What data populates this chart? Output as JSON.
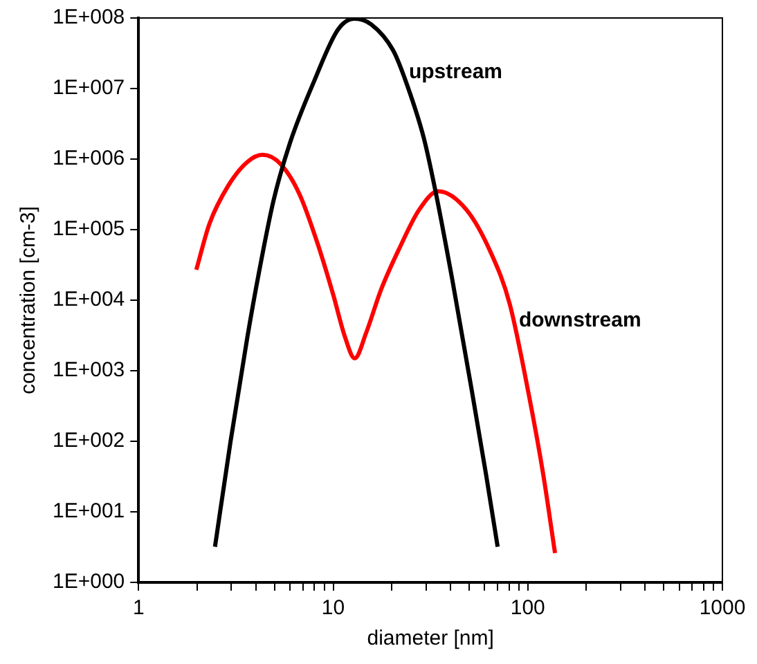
{
  "chart_data": {
    "type": "line",
    "xlabel": "diameter [nm]",
    "ylabel": "concentration [cm-3]",
    "log": "xy",
    "grid": false,
    "legend": false,
    "marker": "none",
    "line_style": "solid",
    "xlim": [
      1,
      1000
    ],
    "ylim": [
      1,
      100000000
    ],
    "xticks": [
      1,
      {
        "value": 2,
        "label": null
      },
      {
        "value": 3,
        "label": null
      },
      {
        "value": 4,
        "label": null
      },
      {
        "value": 5,
        "label": null
      },
      {
        "value": 6,
        "label": null
      },
      {
        "value": 7,
        "label": null
      },
      {
        "value": 8,
        "label": null
      },
      {
        "value": 9,
        "label": null
      },
      10,
      {
        "value": 20,
        "label": null
      },
      {
        "value": 30,
        "label": null
      },
      {
        "value": 40,
        "label": null
      },
      {
        "value": 50,
        "label": null
      },
      {
        "value": 60,
        "label": null
      },
      {
        "value": 70,
        "label": null
      },
      {
        "value": 80,
        "label": null
      },
      {
        "value": 90,
        "label": null
      },
      100,
      {
        "value": 200,
        "label": null
      },
      {
        "value": 300,
        "label": null
      },
      {
        "value": 400,
        "label": null
      },
      {
        "value": 500,
        "label": null
      },
      {
        "value": 600,
        "label": null
      },
      {
        "value": 700,
        "label": null
      },
      {
        "value": 800,
        "label": null
      },
      {
        "value": 900,
        "label": null
      },
      1000
    ],
    "yticks": [
      {
        "value": 1,
        "label": "1E+000"
      },
      {
        "value": 10,
        "label": "1E+001"
      },
      {
        "value": 100,
        "label": "1E+002"
      },
      {
        "value": 1000,
        "label": "1E+003"
      },
      {
        "value": 10000,
        "label": "1E+004"
      },
      {
        "value": 100000,
        "label": "1E+005"
      },
      {
        "value": 1000000,
        "label": "1E+006"
      },
      {
        "value": 10000000,
        "label": "1E+007"
      },
      {
        "value": 100000000,
        "label": "1E+008"
      }
    ],
    "series": [
      {
        "color": "#000000",
        "x": [
          2.47,
          2.97,
          3.62,
          4.17,
          4.94,
          6.0,
          7.98,
          10.6,
          12.9,
          15.7,
          20.3,
          23.3,
          29.2,
          33.7,
          41,
          51.4,
          61,
          70
        ],
        "values": [
          3.2,
          100,
          2960,
          26000,
          260000,
          1700000,
          12700000,
          69000000,
          98000000,
          81000000,
          35000000,
          14000000,
          2000000,
          330000,
          19000,
          550,
          34,
          3.2
        ]
      },
      {
        "color": "#ff0000",
        "x": [
          1.98,
          2.31,
          2.89,
          3.62,
          4.34,
          5.37,
          6.74,
          8.44,
          10,
          11.5,
          12.9,
          14.8,
          17.6,
          22,
          27.6,
          34.6,
          48.5,
          64.4,
          80.7,
          101,
          120,
          138
        ],
        "values": [
          27000,
          120000,
          420000,
          910000,
          1150000,
          850000,
          310000,
          56000,
          12000,
          3000,
          1500,
          3500,
          14000,
          56000,
          190000,
          350000,
          190000,
          48000,
          8900,
          470,
          34,
          2.6
        ]
      }
    ],
    "annotations": [
      {
        "text": "upstream",
        "x": 24.5,
        "y": 17000000
      },
      {
        "text": "downstream",
        "x": 90,
        "y": 5100
      }
    ]
  }
}
